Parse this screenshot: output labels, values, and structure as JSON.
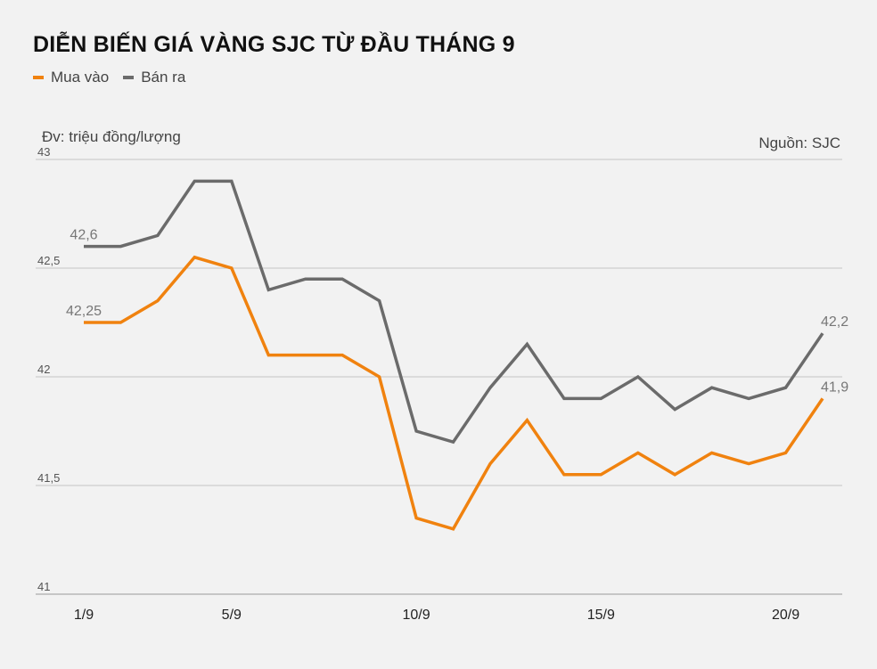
{
  "title": "DIỄN BIẾN GIÁ VÀNG SJC TỪ ĐẦU THÁNG 9",
  "legend": [
    {
      "label": "Mua vào",
      "color": "#f0820f"
    },
    {
      "label": "Bán ra",
      "color": "#6b6b6b"
    }
  ],
  "unit_label": "Đv: triệu đồng/lượng",
  "source_label": "Nguồn: SJC",
  "chart_data": {
    "type": "line",
    "x": [
      1,
      2,
      3,
      4,
      5,
      6,
      7,
      8,
      9,
      10,
      11,
      12,
      13,
      14,
      15,
      16,
      17,
      18,
      19,
      20,
      21
    ],
    "x_tick_values": [
      1,
      5,
      10,
      15,
      20
    ],
    "x_tick_labels": [
      "1/9",
      "5/9",
      "10/9",
      "15/9",
      "20/9"
    ],
    "y_ticks": [
      41,
      41.5,
      42,
      42.5,
      43
    ],
    "y_tick_labels": [
      "41",
      "41,5",
      "42",
      "42,5",
      "43"
    ],
    "ylim": [
      41,
      43
    ],
    "grid": true,
    "series": [
      {
        "name": "Mua vào",
        "color": "#f0820f",
        "values": [
          42.25,
          42.25,
          42.35,
          42.55,
          42.5,
          42.1,
          42.1,
          42.1,
          42.0,
          41.35,
          41.3,
          41.6,
          41.8,
          41.55,
          41.55,
          41.65,
          41.55,
          41.65,
          41.6,
          41.65,
          41.9
        ],
        "labels": [
          {
            "index": 0,
            "text": "42,25"
          },
          {
            "index": 20,
            "text": "41,9"
          }
        ]
      },
      {
        "name": "Bán ra",
        "color": "#6b6b6b",
        "values": [
          42.6,
          42.6,
          42.65,
          42.9,
          42.9,
          42.4,
          42.45,
          42.45,
          42.35,
          41.75,
          41.7,
          41.95,
          42.15,
          41.9,
          41.9,
          42.0,
          41.85,
          41.95,
          41.9,
          41.95,
          42.2
        ],
        "labels": [
          {
            "index": 0,
            "text": "42,6"
          },
          {
            "index": 20,
            "text": "42,2"
          }
        ]
      }
    ]
  }
}
